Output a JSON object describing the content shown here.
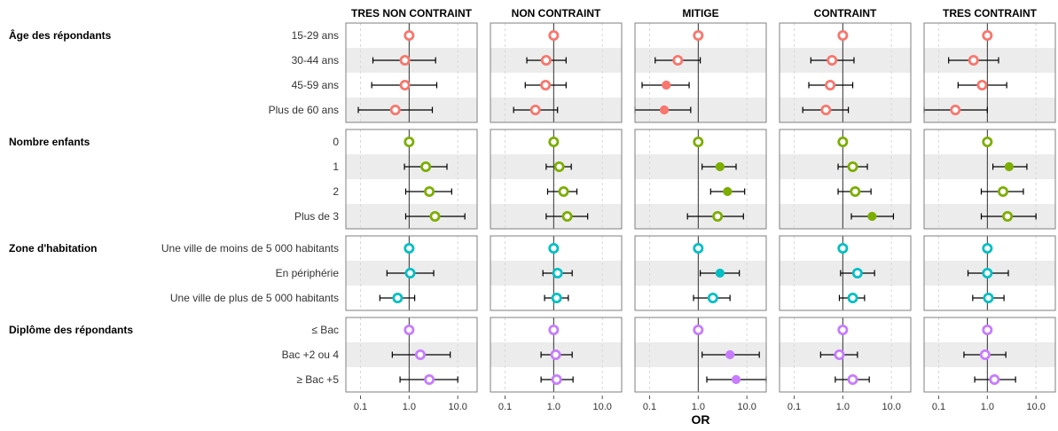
{
  "chart_data": {
    "type": "forest",
    "xscale": "log",
    "xlim": [
      0.05,
      25
    ],
    "xticks": [
      0.1,
      1.0,
      10.0
    ],
    "xtick_labels": [
      "0.1",
      "1.0",
      "10.0"
    ],
    "reference_line": 1.0,
    "xlabel": "OR",
    "panels": [
      "TRES NON CONTRAINT",
      "NON CONTRAINT",
      "MITIGE",
      "CONTRAINT",
      "TRES CONTRAINT"
    ],
    "groups": [
      {
        "name": "Âge des répondants",
        "color": "#F8766D",
        "rows": [
          "15-29 ans",
          "30-44 ans",
          "45-59 ans",
          "Plus de 60 ans"
        ],
        "estimates": [
          [
            [
              1.0,
              null,
              null
            ],
            [
              0.82,
              0.18,
              3.5
            ],
            [
              0.82,
              0.17,
              3.7
            ],
            [
              0.52,
              0.09,
              3.0
            ]
          ],
          [
            [
              1.0,
              null,
              null
            ],
            [
              0.7,
              0.28,
              1.8
            ],
            [
              0.68,
              0.26,
              1.8
            ],
            [
              0.42,
              0.15,
              1.2
            ]
          ],
          [
            [
              1.0,
              null,
              null
            ],
            [
              0.38,
              0.13,
              1.1
            ],
            [
              0.22,
              0.07,
              0.65
            ],
            [
              0.2,
              0.05,
              0.7
            ]
          ],
          [
            [
              1.0,
              null,
              null
            ],
            [
              0.6,
              0.22,
              1.7
            ],
            [
              0.55,
              0.2,
              1.6
            ],
            [
              0.45,
              0.15,
              1.3
            ]
          ],
          [
            [
              1.0,
              null,
              null
            ],
            [
              0.52,
              0.16,
              1.7
            ],
            [
              0.78,
              0.25,
              2.5
            ],
            [
              0.22,
              0.05,
              1.0
            ]
          ]
        ]
      },
      {
        "name": "Nombre enfants",
        "color": "#7CAE00",
        "rows": [
          "0",
          "1",
          "2",
          "Plus de 3"
        ],
        "estimates": [
          [
            [
              1.0,
              null,
              null
            ],
            [
              2.2,
              0.8,
              6.0
            ],
            [
              2.6,
              0.85,
              7.5
            ],
            [
              3.4,
              0.85,
              14.0
            ]
          ],
          [
            [
              1.0,
              null,
              null
            ],
            [
              1.3,
              0.7,
              2.3
            ],
            [
              1.6,
              0.75,
              3.0
            ],
            [
              1.9,
              0.7,
              5.0
            ]
          ],
          [
            [
              1.0,
              null,
              null
            ],
            [
              2.8,
              1.2,
              6.0
            ],
            [
              4.0,
              1.8,
              9.0
            ],
            [
              2.5,
              0.6,
              8.5
            ]
          ],
          [
            [
              1.0,
              null,
              null
            ],
            [
              1.6,
              0.8,
              3.2
            ],
            [
              1.8,
              0.8,
              3.8
            ],
            [
              4.0,
              1.5,
              11.0
            ]
          ],
          [
            [
              1.0,
              null,
              null
            ],
            [
              2.8,
              1.3,
              6.5
            ],
            [
              2.1,
              0.75,
              5.5
            ],
            [
              2.6,
              0.75,
              10.0
            ]
          ]
        ]
      },
      {
        "name": "Zone d'habitation",
        "color": "#00BFC4",
        "rows": [
          "Une ville de moins de 5 000 habitants",
          "En périphérie",
          "Une ville de plus de 5 000 habitants"
        ],
        "estimates": [
          [
            [
              1.0,
              null,
              null
            ],
            [
              1.05,
              0.35,
              3.2
            ],
            [
              0.58,
              0.25,
              1.3
            ]
          ],
          [
            [
              1.0,
              null,
              null
            ],
            [
              1.2,
              0.6,
              2.4
            ],
            [
              1.15,
              0.65,
              2.0
            ]
          ],
          [
            [
              1.0,
              null,
              null
            ],
            [
              2.8,
              1.1,
              7.0
            ],
            [
              2.0,
              0.8,
              4.5
            ]
          ],
          [
            [
              1.0,
              null,
              null
            ],
            [
              2.0,
              0.9,
              4.5
            ],
            [
              1.6,
              0.85,
              2.8
            ]
          ],
          [
            [
              1.0,
              null,
              null
            ],
            [
              1.0,
              0.4,
              2.7
            ],
            [
              1.05,
              0.5,
              2.2
            ]
          ]
        ]
      },
      {
        "name": "Diplôme des répondants",
        "color": "#C77CFF",
        "rows": [
          "≤ Bac",
          "Bac +2 ou 4",
          "≥ Bac +5"
        ],
        "estimates": [
          [
            [
              1.0,
              null,
              null
            ],
            [
              1.7,
              0.45,
              7.0
            ],
            [
              2.6,
              0.65,
              10.0
            ]
          ],
          [
            [
              1.0,
              null,
              null
            ],
            [
              1.1,
              0.55,
              2.4
            ],
            [
              1.15,
              0.55,
              2.5
            ]
          ],
          [
            [
              1.0,
              null,
              null
            ],
            [
              4.5,
              1.2,
              18.0
            ],
            [
              6.0,
              1.5,
              25.0
            ]
          ],
          [
            [
              1.0,
              null,
              null
            ],
            [
              0.85,
              0.35,
              2.0
            ],
            [
              1.6,
              0.7,
              3.5
            ]
          ],
          [
            [
              1.0,
              null,
              null
            ],
            [
              0.9,
              0.33,
              2.4
            ],
            [
              1.4,
              0.55,
              3.8
            ]
          ]
        ]
      }
    ]
  }
}
